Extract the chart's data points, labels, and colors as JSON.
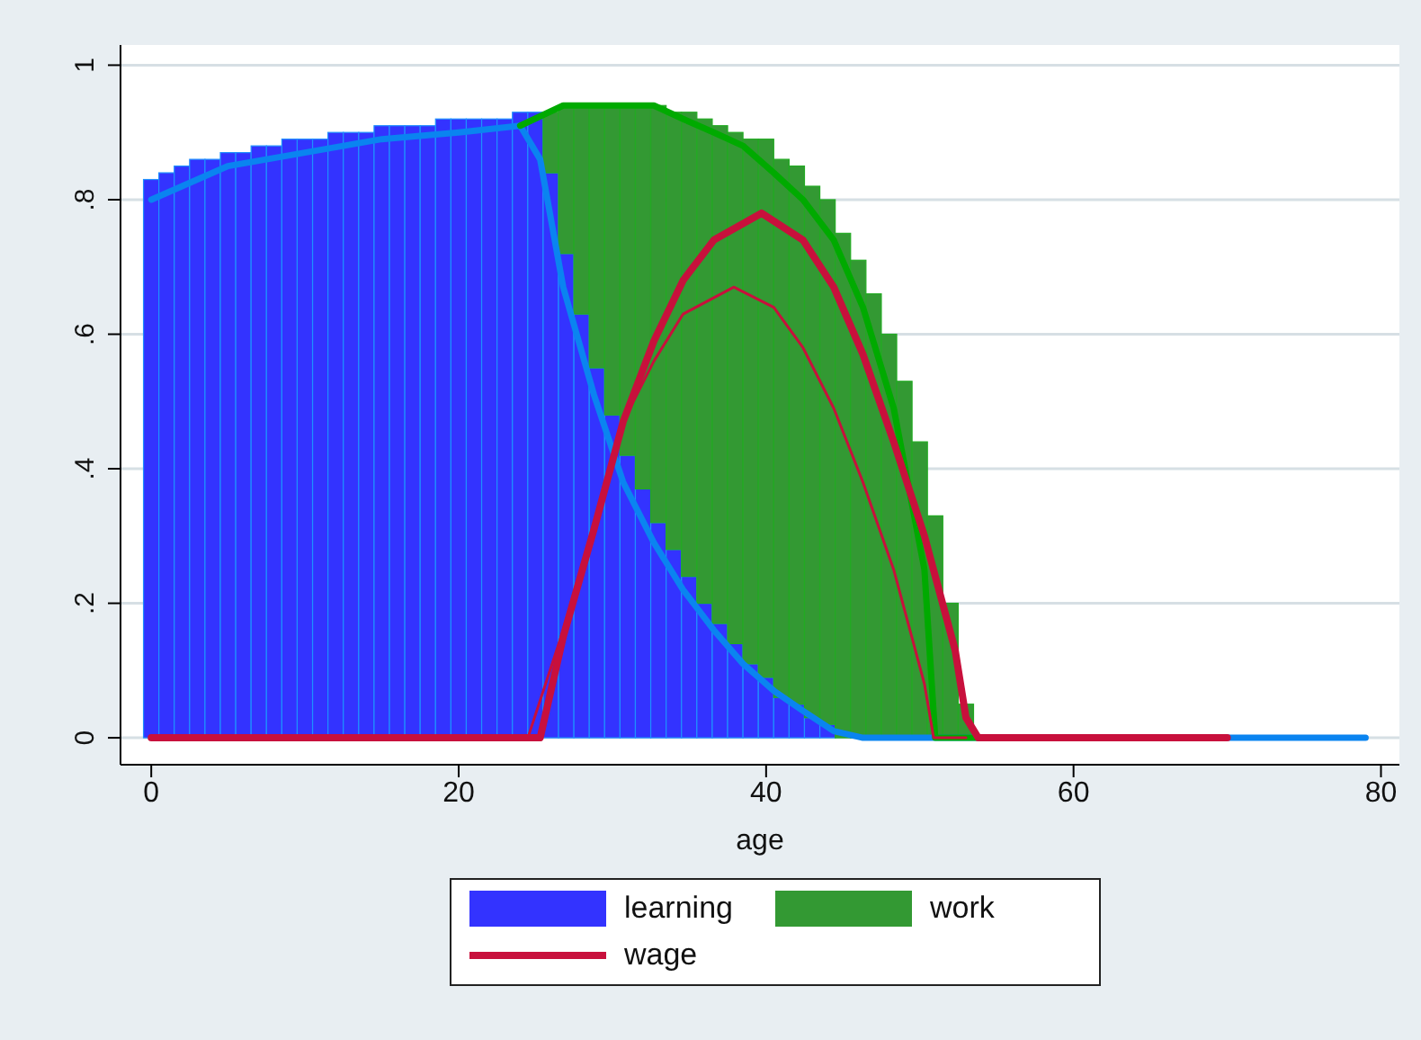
{
  "chart_data": {
    "type": "bar",
    "xlabel": "age",
    "stacked": true,
    "x": [
      0,
      1,
      2,
      3,
      4,
      5,
      6,
      7,
      8,
      9,
      10,
      11,
      12,
      13,
      14,
      15,
      16,
      17,
      18,
      19,
      20,
      21,
      22,
      23,
      24,
      25,
      26,
      27,
      28,
      29,
      30,
      31,
      32,
      33,
      34,
      35,
      36,
      37,
      38,
      39,
      40,
      41,
      42,
      43,
      44,
      45,
      46,
      47,
      48,
      49,
      50,
      51,
      52,
      53
    ],
    "series": [
      {
        "name": "learning",
        "color": "#3333ff",
        "values": [
          0.83,
          0.84,
          0.85,
          0.86,
          0.86,
          0.87,
          0.87,
          0.88,
          0.88,
          0.89,
          0.89,
          0.89,
          0.9,
          0.9,
          0.9,
          0.91,
          0.91,
          0.91,
          0.91,
          0.92,
          0.92,
          0.92,
          0.92,
          0.92,
          0.93,
          0.93,
          0.84,
          0.72,
          0.63,
          0.55,
          0.48,
          0.42,
          0.37,
          0.32,
          0.28,
          0.24,
          0.2,
          0.17,
          0.14,
          0.11,
          0.09,
          0.06,
          0.05,
          0.03,
          0.02,
          null,
          null,
          null,
          0,
          0,
          0,
          0,
          0,
          0
        ]
      },
      {
        "name": "work",
        "color": "#339933",
        "values": [
          null,
          null,
          null,
          null,
          null,
          null,
          null,
          null,
          null,
          null,
          null,
          null,
          null,
          null,
          null,
          null,
          null,
          null,
          null,
          null,
          null,
          null,
          null,
          null,
          null,
          null,
          0.09,
          0.22,
          0.31,
          0.39,
          0.46,
          0.52,
          0.57,
          0.62,
          0.65,
          0.69,
          0.72,
          0.74,
          0.76,
          0.78,
          0.8,
          0.8,
          0.8,
          0.79,
          0.78,
          0.75,
          0.71,
          0.66,
          0.6,
          0.53,
          0.44,
          0.33,
          0.2,
          0.05
        ]
      },
      {
        "type": "line",
        "color": "#0a84f0",
        "x": [
          0,
          2,
          5,
          10,
          15,
          20,
          24,
          25.3,
          26.8,
          28.8,
          30.7,
          32.7,
          34.6,
          36.6,
          38.5,
          40.5,
          42.4,
          44.4,
          46.3,
          50,
          60,
          70,
          79
        ],
        "values": [
          0.8,
          0.82,
          0.85,
          0.87,
          0.89,
          0.9,
          0.91,
          0.86,
          0.67,
          0.51,
          0.38,
          0.29,
          0.22,
          0.16,
          0.11,
          0.07,
          0.04,
          0.01,
          0,
          0,
          0,
          0,
          0
        ]
      },
      {
        "type": "line",
        "color": "#00aa00",
        "x": [
          24,
          26.8,
          29.9,
          32.7,
          34.6,
          36.6,
          38.5,
          40.5,
          42.4,
          44.4,
          46.3,
          48.3,
          50.3,
          51,
          54
        ],
        "values": [
          0.91,
          0.94,
          0.94,
          0.94,
          0.92,
          0.9,
          0.88,
          0.84,
          0.8,
          0.74,
          0.64,
          0.49,
          0.25,
          0,
          0
        ]
      },
      {
        "type": "line",
        "color": "#c8103c",
        "x": [
          0,
          24.5,
          26.8,
          30.7,
          32.7,
          34.6,
          37.9,
          40.5,
          42.4,
          44.4,
          46.3,
          48.3,
          50.3,
          50.9,
          53
        ],
        "values": [
          0,
          0,
          0.16,
          0.47,
          0.56,
          0.63,
          0.67,
          0.64,
          0.58,
          0.49,
          0.38,
          0.25,
          0.08,
          0,
          0
        ]
      },
      {
        "name": "wage",
        "type": "line",
        "color": "#c8103c",
        "x": [
          0,
          25.3,
          26.8,
          28.8,
          30.7,
          32.7,
          34.6,
          36.6,
          39.7,
          42.4,
          44.4,
          46.3,
          48.3,
          50.3,
          52.3,
          53,
          53.8,
          70
        ],
        "values": [
          0,
          0,
          0.15,
          0.31,
          0.47,
          0.59,
          0.68,
          0.74,
          0.78,
          0.74,
          0.67,
          0.57,
          0.44,
          0.3,
          0.13,
          0.03,
          0,
          0
        ]
      }
    ],
    "xlim": [
      -2,
      81.2
    ],
    "xticks": [
      0,
      20,
      40,
      60,
      80
    ],
    "ylim": [
      -0.04,
      1.03
    ],
    "yticks": [
      {
        "value": 0,
        "label": "0"
      },
      {
        "value": 0.2,
        "label": ".2"
      },
      {
        "value": 0.4,
        "label": ".4"
      },
      {
        "value": 0.6,
        "label": ".6"
      },
      {
        "value": 0.8,
        "label": ".8"
      },
      {
        "value": 1,
        "label": "1"
      }
    ],
    "grid": "y",
    "legend": "bottom",
    "marker": "none",
    "line_style": "solid"
  }
}
